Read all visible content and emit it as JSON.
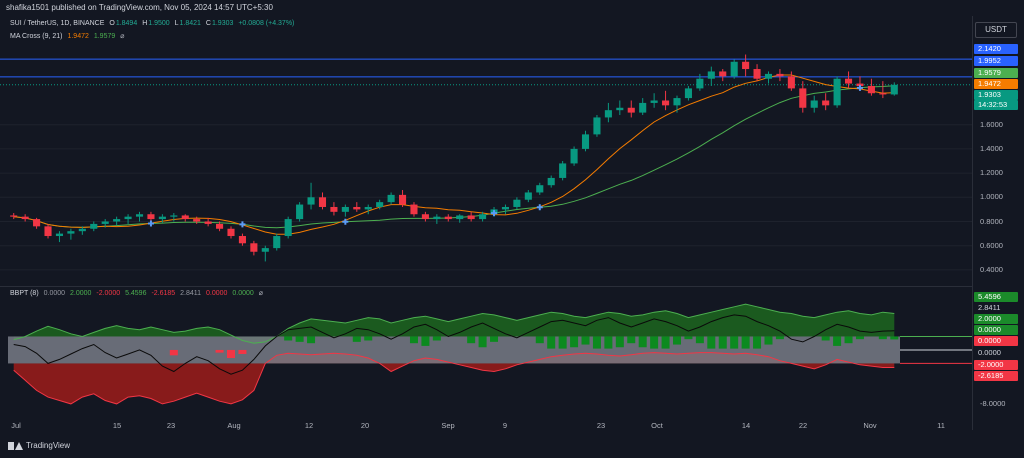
{
  "header": {
    "published": "shafika1501 published on TradingView.com, Nov 05, 2024 14:57 UTC+5:30"
  },
  "legend_price": {
    "symbol": "SUI / TetherUS, 1D, BINANCE",
    "o_label": "O",
    "o_value": "1.8494",
    "h_label": "H",
    "h_value": "1.9500",
    "l_label": "L",
    "l_value": "1.8421",
    "c_label": "C",
    "c_value": "1.9303",
    "change": "+0.0808 (+4.37%)"
  },
  "legend_ma": {
    "name": "MA Cross (9, 21)",
    "fast": "1.9472",
    "slow": "1.9579",
    "eye": "⌀"
  },
  "legend_bbpt": {
    "name": "BBPT (8)",
    "v1": "0.0000",
    "v2": "2.0000",
    "v3": "-2.0000",
    "v4": "5.4596",
    "v5": "-2.6185",
    "v6": "2.8411",
    "v7": "0.0000",
    "v8": "0.0000",
    "eye": "⌀"
  },
  "axis": {
    "currency": "USDT",
    "price_ticks": [
      "1.6000",
      "1.4000",
      "1.2000",
      "1.0000",
      "0.8000",
      "0.6000",
      "0.4000"
    ],
    "ind_ticks": [
      "-8.0000"
    ],
    "x_ticks": [
      "Jul",
      "15",
      "23",
      "Aug",
      "12",
      "20",
      "Sep",
      "9",
      "23",
      "Oct",
      "14",
      "22",
      "Nov",
      "11"
    ]
  },
  "price_tags": {
    "h1": "2.1420",
    "h2": "1.9952",
    "ma_slow": "1.9579",
    "ma_fast": "1.9472",
    "close": "1.9303",
    "countdown": "14:32:53"
  },
  "ind_tags": {
    "upper": "5.4596",
    "bbp": "2.8411",
    "plus2": "2.0000",
    "zero_a": "0.0000",
    "zero_b": "0.0000",
    "zero_c": "0.0000",
    "minus2": "-2.0000",
    "lower": "-2.6185"
  },
  "brand": {
    "name": "TradingView"
  },
  "colors": {
    "bg": "#131722",
    "up": "#089981",
    "down": "#f23645",
    "ma_fast": "#f57c00",
    "ma_slow": "#4caf50",
    "hline": "#2962ff",
    "band_up": "#1b5e20",
    "band_down": "#b71c1c"
  },
  "chart_data": [
    {
      "type": "candlestick",
      "title": "SUI / TetherUS, 1D, BINANCE",
      "ylim": [
        0.3,
        2.3
      ],
      "hlines": [
        2.142,
        1.9952
      ],
      "candles": [
        [
          0.85,
          0.87,
          0.82,
          0.84
        ],
        [
          0.84,
          0.86,
          0.8,
          0.82
        ],
        [
          0.82,
          0.83,
          0.74,
          0.76
        ],
        [
          0.76,
          0.78,
          0.66,
          0.68
        ],
        [
          0.68,
          0.72,
          0.63,
          0.7
        ],
        [
          0.7,
          0.74,
          0.65,
          0.72
        ],
        [
          0.72,
          0.76,
          0.69,
          0.74
        ],
        [
          0.74,
          0.8,
          0.72,
          0.78
        ],
        [
          0.78,
          0.82,
          0.75,
          0.8
        ],
        [
          0.8,
          0.84,
          0.77,
          0.82
        ],
        [
          0.82,
          0.86,
          0.78,
          0.84
        ],
        [
          0.84,
          0.88,
          0.8,
          0.86
        ],
        [
          0.86,
          0.88,
          0.8,
          0.82
        ],
        [
          0.82,
          0.86,
          0.79,
          0.84
        ],
        [
          0.84,
          0.87,
          0.8,
          0.85
        ],
        [
          0.85,
          0.86,
          0.8,
          0.82
        ],
        [
          0.82,
          0.84,
          0.78,
          0.8
        ],
        [
          0.8,
          0.83,
          0.76,
          0.78
        ],
        [
          0.78,
          0.8,
          0.72,
          0.74
        ],
        [
          0.74,
          0.76,
          0.66,
          0.68
        ],
        [
          0.68,
          0.7,
          0.6,
          0.62
        ],
        [
          0.62,
          0.64,
          0.52,
          0.55
        ],
        [
          0.55,
          0.6,
          0.47,
          0.58
        ],
        [
          0.58,
          0.7,
          0.56,
          0.68
        ],
        [
          0.68,
          0.84,
          0.66,
          0.82
        ],
        [
          0.82,
          0.96,
          0.8,
          0.94
        ],
        [
          0.94,
          1.12,
          0.9,
          1.0
        ],
        [
          1.0,
          1.04,
          0.9,
          0.92
        ],
        [
          0.92,
          0.96,
          0.85,
          0.88
        ],
        [
          0.88,
          0.94,
          0.84,
          0.92
        ],
        [
          0.92,
          0.96,
          0.88,
          0.9
        ],
        [
          0.9,
          0.94,
          0.86,
          0.92
        ],
        [
          0.92,
          0.98,
          0.9,
          0.96
        ],
        [
          0.96,
          1.04,
          0.94,
          1.02
        ],
        [
          1.02,
          1.06,
          0.92,
          0.94
        ],
        [
          0.94,
          0.96,
          0.84,
          0.86
        ],
        [
          0.86,
          0.88,
          0.8,
          0.82
        ],
        [
          0.82,
          0.86,
          0.78,
          0.84
        ],
        [
          0.84,
          0.86,
          0.8,
          0.82
        ],
        [
          0.82,
          0.86,
          0.79,
          0.85
        ],
        [
          0.85,
          0.88,
          0.8,
          0.82
        ],
        [
          0.82,
          0.88,
          0.8,
          0.86
        ],
        [
          0.86,
          0.92,
          0.84,
          0.9
        ],
        [
          0.9,
          0.94,
          0.86,
          0.92
        ],
        [
          0.92,
          1.0,
          0.9,
          0.98
        ],
        [
          0.98,
          1.06,
          0.96,
          1.04
        ],
        [
          1.04,
          1.12,
          1.02,
          1.1
        ],
        [
          1.1,
          1.18,
          1.08,
          1.16
        ],
        [
          1.16,
          1.3,
          1.14,
          1.28
        ],
        [
          1.28,
          1.42,
          1.26,
          1.4
        ],
        [
          1.4,
          1.55,
          1.38,
          1.52
        ],
        [
          1.52,
          1.68,
          1.5,
          1.66
        ],
        [
          1.66,
          1.78,
          1.62,
          1.72
        ],
        [
          1.72,
          1.8,
          1.68,
          1.74
        ],
        [
          1.74,
          1.8,
          1.66,
          1.7
        ],
        [
          1.7,
          1.82,
          1.68,
          1.78
        ],
        [
          1.78,
          1.86,
          1.74,
          1.8
        ],
        [
          1.8,
          1.88,
          1.72,
          1.76
        ],
        [
          1.76,
          1.84,
          1.7,
          1.82
        ],
        [
          1.82,
          1.92,
          1.8,
          1.9
        ],
        [
          1.9,
          2.02,
          1.88,
          1.98
        ],
        [
          1.98,
          2.08,
          1.92,
          2.04
        ],
        [
          2.04,
          2.06,
          1.96,
          2.0
        ],
        [
          2.0,
          2.14,
          1.98,
          2.12
        ],
        [
          2.12,
          2.18,
          2.0,
          2.06
        ],
        [
          2.06,
          2.1,
          1.96,
          1.98
        ],
        [
          1.98,
          2.04,
          1.94,
          2.02
        ],
        [
          2.02,
          2.06,
          1.96,
          2.0
        ],
        [
          2.0,
          2.04,
          1.88,
          1.9
        ],
        [
          1.9,
          1.96,
          1.7,
          1.74
        ],
        [
          1.74,
          1.84,
          1.7,
          1.8
        ],
        [
          1.8,
          1.86,
          1.72,
          1.76
        ],
        [
          1.76,
          2.0,
          1.74,
          1.98
        ],
        [
          1.98,
          2.04,
          1.9,
          1.94
        ],
        [
          1.94,
          2.0,
          1.88,
          1.92
        ],
        [
          1.92,
          1.98,
          1.84,
          1.86
        ],
        [
          1.86,
          1.96,
          1.82,
          1.85
        ],
        [
          1.85,
          1.95,
          1.84,
          1.93
        ]
      ],
      "ma_fast_label": "1.9472",
      "ma_slow_label": "1.9579"
    },
    {
      "type": "area",
      "title": "BBPT (8)",
      "ylim": [
        -9.5,
        8.0
      ],
      "upper": [
        1.5,
        2.0,
        2.8,
        3.5,
        3.0,
        2.4,
        2.0,
        2.6,
        3.2,
        3.6,
        3.2,
        3.0,
        3.4,
        3.0,
        2.6,
        2.8,
        3.2,
        3.4,
        3.0,
        2.2,
        1.4,
        1.0,
        1.2,
        2.0,
        3.2,
        4.0,
        4.6,
        4.4,
        4.2,
        4.0,
        4.4,
        4.8,
        4.6,
        4.0,
        4.4,
        4.8,
        5.0,
        4.6,
        4.2,
        4.6,
        5.0,
        5.4,
        5.2,
        4.8,
        4.4,
        4.8,
        5.2,
        5.6,
        5.4,
        5.0,
        4.8,
        5.2,
        5.6,
        5.4,
        5.0,
        5.2,
        5.6,
        5.8,
        5.4,
        4.8,
        5.2,
        5.6,
        6.0,
        6.4,
        6.8,
        6.4,
        6.0,
        5.6,
        5.4,
        5.0,
        4.8,
        5.2,
        5.6,
        5.8,
        5.4,
        5.2,
        5.6,
        5.4
      ],
      "lower": [
        -3.0,
        -4.5,
        -6.0,
        -7.0,
        -7.5,
        -8.0,
        -7.0,
        -6.5,
        -7.5,
        -8.0,
        -7.0,
        -6.8,
        -7.2,
        -8.0,
        -7.6,
        -7.0,
        -6.4,
        -7.0,
        -7.6,
        -8.0,
        -7.4,
        -6.0,
        -2.0,
        -0.8,
        -0.5,
        -0.6,
        -0.7,
        -0.6,
        -0.5,
        -0.6,
        -0.8,
        -1.2,
        -2.0,
        -3.2,
        -2.4,
        -1.6,
        -1.2,
        -1.4,
        -1.8,
        -2.2,
        -2.6,
        -3.0,
        -3.2,
        -2.8,
        -2.2,
        -1.8,
        -1.4,
        -1.0,
        -0.8,
        -0.6,
        -0.5,
        -0.6,
        -0.8,
        -0.9,
        -0.7,
        -0.5,
        -0.4,
        -0.5,
        -0.6,
        -0.5,
        -0.4,
        -0.4,
        -0.5,
        -0.6,
        -0.5,
        -0.7,
        -1.0,
        -1.6,
        -2.0,
        -2.4,
        -2.8,
        -2.2,
        -1.4,
        -1.8,
        -2.2,
        -2.4,
        -2.6,
        -2.6
      ],
      "bbp": [
        0.8,
        0.5,
        -0.5,
        -2.0,
        -1.4,
        -0.6,
        0.2,
        0.8,
        -0.4,
        -1.2,
        -0.6,
        0.0,
        -0.8,
        -2.4,
        -3.2,
        -2.0,
        -1.0,
        -1.6,
        -2.8,
        -3.6,
        -3.0,
        -1.4,
        0.6,
        2.0,
        3.0,
        3.2,
        3.4,
        2.6,
        1.8,
        2.4,
        3.2,
        3.0,
        2.4,
        1.6,
        2.4,
        3.4,
        3.8,
        3.0,
        2.0,
        2.6,
        3.4,
        4.0,
        3.2,
        2.4,
        1.8,
        2.6,
        3.4,
        4.2,
        4.4,
        4.0,
        3.6,
        4.4,
        4.8,
        4.0,
        3.4,
        4.0,
        4.6,
        4.2,
        3.6,
        2.8,
        3.4,
        4.2,
        4.8,
        5.2,
        5.0,
        4.2,
        3.6,
        2.8,
        1.6,
        1.2,
        2.0,
        3.0,
        3.8,
        3.4,
        2.8,
        2.6,
        2.8,
        2.84
      ],
      "band_levels": [
        2.0,
        0.0,
        -2.0
      ]
    }
  ]
}
